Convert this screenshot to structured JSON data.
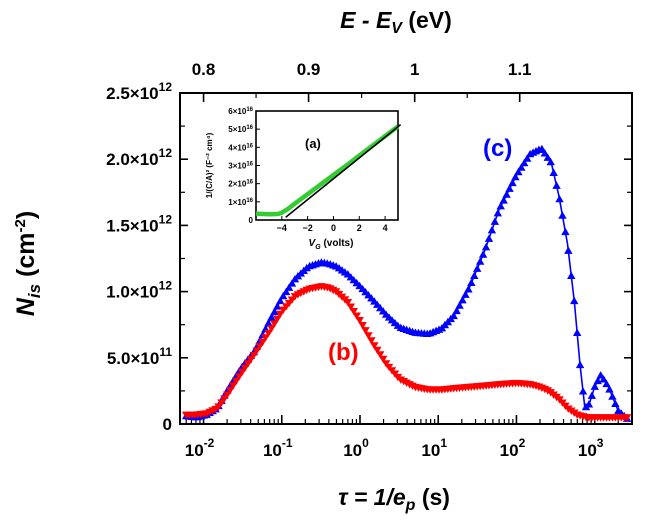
{
  "chart_data": {
    "type": "line",
    "title": "",
    "xlabel": {
      "text": "τ = 1/e",
      "sub": "p",
      "unit": " (s)"
    },
    "ylabel": {
      "text": "N",
      "sub": "is",
      "unit_pre": " (cm",
      "unit_sup": "-2",
      "unit_post": ")"
    },
    "top_xlabel": {
      "text": "E - E",
      "sub": "V",
      "unit": " (eV)"
    },
    "xscale": "log",
    "xlim": [
      0.005,
      3000
    ],
    "ylim": [
      0,
      2500000000000.0
    ],
    "x_ticks": [
      {
        "value": 0.01,
        "base": "10",
        "exp": "-2"
      },
      {
        "value": 0.1,
        "base": "10",
        "exp": "-1"
      },
      {
        "value": 1,
        "base": "10",
        "exp": "0"
      },
      {
        "value": 10,
        "base": "10",
        "exp": "1"
      },
      {
        "value": 100,
        "base": "10",
        "exp": "2"
      },
      {
        "value": 1000,
        "base": "10",
        "exp": "3"
      }
    ],
    "y_ticks": [
      {
        "value": 0,
        "label": "0",
        "exp": ""
      },
      {
        "value": 500000000000.0,
        "label": "5.0×10",
        "exp": "11"
      },
      {
        "value": 1000000000000.0,
        "label": "1.0×10",
        "exp": "12"
      },
      {
        "value": 1500000000000.0,
        "label": "1.5×10",
        "exp": "12"
      },
      {
        "value": 2000000000000.0,
        "label": "2.0×10",
        "exp": "12"
      },
      {
        "value": 2500000000000.0,
        "label": "2.5×10",
        "exp": "12"
      }
    ],
    "top_ticks": [
      {
        "tau": 0.01,
        "label": "0.8"
      },
      {
        "tau": 0.22,
        "label": "0.9"
      },
      {
        "tau": 5,
        "label": "1"
      },
      {
        "tau": 110,
        "label": "1.1"
      }
    ],
    "series": [
      {
        "name": "(c)",
        "color": "#0000ff",
        "marker": "triangle-up",
        "x": [
          0.006,
          0.008,
          0.011,
          0.015,
          0.02,
          0.03,
          0.045,
          0.07,
          0.1,
          0.15,
          0.22,
          0.32,
          0.4,
          0.5,
          0.7,
          1.0,
          1.5,
          2.2,
          3.2,
          5,
          7.5,
          11,
          16,
          25,
          40,
          60,
          100,
          150,
          210,
          280,
          350,
          450,
          550,
          650,
          750,
          850,
          1000,
          1200,
          1500,
          2000,
          2600
        ],
        "y": [
          60000000000.0,
          50000000000.0,
          70000000000.0,
          120000000000.0,
          250000000000.0,
          420000000000.0,
          550000000000.0,
          780000000000.0,
          950000000000.0,
          1100000000000.0,
          1190000000000.0,
          1220000000000.0,
          1210000000000.0,
          1190000000000.0,
          1130000000000.0,
          1040000000000.0,
          930000000000.0,
          820000000000.0,
          730000000000.0,
          690000000000.0,
          680000000000.0,
          720000000000.0,
          820000000000.0,
          1030000000000.0,
          1320000000000.0,
          1620000000000.0,
          1880000000000.0,
          2040000000000.0,
          2080000000000.0,
          1970000000000.0,
          1720000000000.0,
          1360000000000.0,
          920000000000.0,
          450000000000.0,
          120000000000.0,
          150000000000.0,
          280000000000.0,
          370000000000.0,
          280000000000.0,
          100000000000.0,
          40000000000.0
        ]
      },
      {
        "name": "(b)",
        "color": "#ff0000",
        "marker": "triangle-down",
        "x": [
          0.006,
          0.008,
          0.011,
          0.015,
          0.02,
          0.03,
          0.045,
          0.07,
          0.1,
          0.15,
          0.22,
          0.32,
          0.4,
          0.5,
          0.7,
          1.0,
          1.5,
          2.2,
          3.2,
          5,
          7.5,
          11,
          16,
          25,
          40,
          60,
          100,
          150,
          200,
          260,
          350,
          450,
          600,
          800,
          1100,
          1500,
          2000,
          2600
        ],
        "y": [
          70000000000.0,
          70000000000.0,
          80000000000.0,
          120000000000.0,
          220000000000.0,
          380000000000.0,
          530000000000.0,
          700000000000.0,
          850000000000.0,
          970000000000.0,
          1020000000000.0,
          1040000000000.0,
          1030000000000.0,
          1000000000000.0,
          920000000000.0,
          780000000000.0,
          600000000000.0,
          450000000000.0,
          340000000000.0,
          280000000000.0,
          260000000000.0,
          260000000000.0,
          270000000000.0,
          280000000000.0,
          290000000000.0,
          300000000000.0,
          310000000000.0,
          300000000000.0,
          280000000000.0,
          250000000000.0,
          190000000000.0,
          120000000000.0,
          70000000000.0,
          50000000000.0,
          50000000000.0,
          50000000000.0,
          50000000000.0,
          50000000000.0
        ]
      }
    ],
    "annotations": [
      {
        "text": "(c)",
        "color": "#0000ff"
      },
      {
        "text": "(b)",
        "color": "#ff0000"
      }
    ],
    "inset": {
      "label": "(a)",
      "type": "line",
      "xlabel": {
        "text": "V",
        "sub": "G",
        "unit": " (volts)"
      },
      "ylabel": "1/(C/A)² (F⁻² cm⁴)",
      "xlim": [
        -6,
        5
      ],
      "ylim": [
        0,
        6
      ],
      "x_ticks": [
        -4,
        -2,
        0,
        2,
        4
      ],
      "y_ticks": [
        {
          "value": 0,
          "label": "0",
          "exp": ""
        },
        {
          "value": 1,
          "label": "1×10",
          "exp": "16"
        },
        {
          "value": 2,
          "label": "2×10",
          "exp": "16"
        },
        {
          "value": 3,
          "label": "3×10",
          "exp": "16"
        },
        {
          "value": 4,
          "label": "4×10",
          "exp": "16"
        },
        {
          "value": 5,
          "label": "5×10",
          "exp": "16"
        },
        {
          "value": 6,
          "label": "6×10",
          "exp": "16"
        }
      ],
      "data_color": "#33cc33",
      "fit_color": "#000000",
      "data": {
        "x": [
          -6,
          -5,
          -4.3,
          -4,
          -3.5,
          -3,
          -2,
          -1,
          0,
          1,
          2,
          3,
          4,
          5
        ],
        "y": [
          0.35,
          0.32,
          0.33,
          0.4,
          0.62,
          0.9,
          1.42,
          1.95,
          2.48,
          3.0,
          3.55,
          4.08,
          4.62,
          5.15
        ]
      },
      "fit": {
        "x": [
          -3.7,
          5.2
        ],
        "y": [
          0.15,
          5.25
        ]
      }
    }
  }
}
